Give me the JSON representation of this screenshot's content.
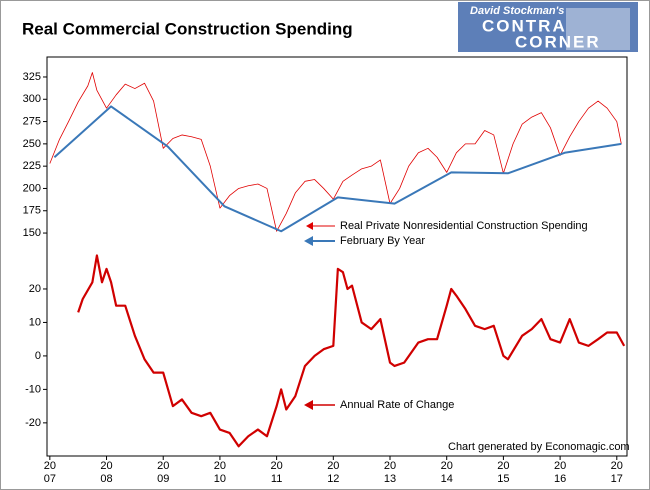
{
  "chart_data": {
    "type": "line",
    "title": "Real Commercial Construction Spending",
    "logo": [
      "David Stockman's",
      "CONTRA",
      "CORNER"
    ],
    "credit": "Chart generated by Economagic.com",
    "xlim": [
      2006.95,
      2017.18
    ],
    "xticks": [
      {
        "value": 2007,
        "label": "20\n07"
      },
      {
        "value": 2008,
        "label": "20\n08"
      },
      {
        "value": 2009,
        "label": "20\n09"
      },
      {
        "value": 2010,
        "label": "20\n10"
      },
      {
        "value": 2011,
        "label": "20\n11"
      },
      {
        "value": 2012,
        "label": "20\n12"
      },
      {
        "value": 2013,
        "label": "20\n13"
      },
      {
        "value": 2014,
        "label": "20\n14"
      },
      {
        "value": 2015,
        "label": "20\n15"
      },
      {
        "value": 2016,
        "label": "20\n16"
      },
      {
        "value": 2017,
        "label": "20\n17"
      }
    ],
    "ylim": [
      -100,
      347.4
    ],
    "yticks": [
      150,
      175,
      200,
      225,
      250,
      275,
      300,
      325
    ],
    "y2lim": [
      -29.9,
      89.3
    ],
    "y2ticks": [
      -20,
      -10,
      0,
      10,
      20
    ],
    "series": [
      {
        "name": "Real Private Nonresidential Construction Spending",
        "color": "#e00000",
        "width": 0.8,
        "x": [
          2007,
          2007.17,
          2007.33,
          2007.5,
          2007.67,
          2007.75,
          2007.83,
          2008,
          2008.17,
          2008.33,
          2008.5,
          2008.67,
          2008.83,
          2009,
          2009.17,
          2009.33,
          2009.5,
          2009.67,
          2009.83,
          2010,
          2010.17,
          2010.33,
          2010.5,
          2010.67,
          2010.83,
          2011,
          2011.17,
          2011.33,
          2011.5,
          2011.67,
          2011.83,
          2012,
          2012.17,
          2012.33,
          2012.5,
          2012.67,
          2012.83,
          2013,
          2013.17,
          2013.33,
          2013.5,
          2013.67,
          2013.83,
          2014,
          2014.17,
          2014.33,
          2014.5,
          2014.67,
          2014.83,
          2015,
          2015.17,
          2015.33,
          2015.5,
          2015.67,
          2015.83,
          2016,
          2016.17,
          2016.33,
          2016.5,
          2016.67,
          2016.83,
          2017,
          2017.08
        ],
        "values": [
          228,
          255,
          275,
          297,
          315,
          330,
          310,
          290,
          305,
          317,
          312,
          318,
          298,
          245,
          256,
          260,
          258,
          255,
          225,
          178,
          192,
          200,
          203,
          205,
          200,
          152,
          172,
          195,
          208,
          210,
          200,
          188,
          208,
          215,
          222,
          225,
          232,
          183,
          200,
          225,
          240,
          245,
          235,
          218,
          240,
          250,
          250,
          265,
          260,
          217,
          250,
          272,
          280,
          285,
          268,
          237,
          258,
          275,
          290,
          298,
          290,
          275,
          250
        ]
      },
      {
        "name": "February By Year",
        "color": "#3a78b8",
        "width": 2,
        "x": [
          2007.08,
          2008.08,
          2009.08,
          2010.08,
          2011.08,
          2012.08,
          2013.08,
          2014.08,
          2015.08,
          2016.08,
          2017.08
        ],
        "values": [
          235,
          292,
          247,
          180,
          152,
          190,
          183,
          218,
          217,
          240,
          250
        ]
      },
      {
        "name": "Annual Rate of Change",
        "color": "#d00000",
        "width": 2.2,
        "axis": "y2",
        "x": [
          2007.5,
          2007.58,
          2007.75,
          2007.83,
          2007.92,
          2008,
          2008.08,
          2008.17,
          2008.33,
          2008.5,
          2008.67,
          2008.83,
          2009,
          2009.17,
          2009.33,
          2009.5,
          2009.67,
          2009.83,
          2010,
          2010.17,
          2010.33,
          2010.5,
          2010.67,
          2010.83,
          2011,
          2011.08,
          2011.17,
          2011.33,
          2011.5,
          2011.67,
          2011.83,
          2012,
          2012.08,
          2012.17,
          2012.25,
          2012.33,
          2012.5,
          2012.67,
          2012.83,
          2013,
          2013.08,
          2013.25,
          2013.5,
          2013.67,
          2013.83,
          2014,
          2014.08,
          2014.17,
          2014.33,
          2014.5,
          2014.67,
          2014.83,
          2015,
          2015.08,
          2015.33,
          2015.5,
          2015.67,
          2015.83,
          2016,
          2016.17,
          2016.33,
          2016.5,
          2016.67,
          2016.83,
          2017,
          2017.13
        ],
        "values": [
          13,
          17,
          22,
          30,
          22,
          26,
          22,
          15,
          15,
          6,
          -1,
          -5,
          -5,
          -15,
          -13,
          -17,
          -18,
          -17,
          -22,
          -23,
          -27,
          -24,
          -22,
          -24,
          -15,
          -10,
          -16,
          -12,
          -3,
          0,
          2,
          3,
          26,
          25,
          20,
          21,
          10,
          8,
          11,
          -2,
          -3,
          -2,
          4,
          5,
          5,
          15,
          20,
          18,
          14,
          9,
          8,
          9,
          0,
          -1,
          6,
          8,
          11,
          5,
          4,
          11,
          4,
          3,
          5,
          7,
          7,
          3
        ]
      }
    ]
  }
}
